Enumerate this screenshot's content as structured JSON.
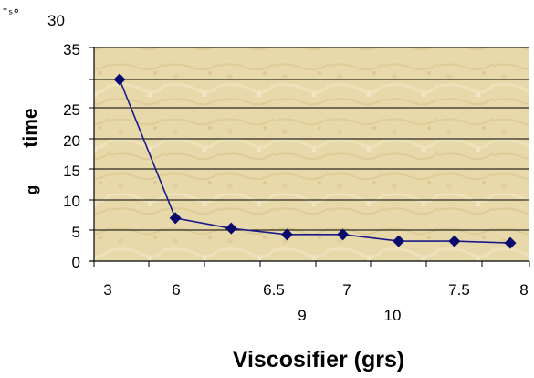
{
  "chart_data": {
    "type": "line",
    "xlabel": "Viscosifier (grs)",
    "ylabel": "time",
    "ylabel_fragment": "g",
    "corner_fragment": "¯ˢ°",
    "y_ticks": [
      "0",
      "5",
      "10",
      "15",
      "20",
      "25",
      "",
      "35",
      "30"
    ],
    "x_ticks_top": [
      "3",
      "6",
      "6.5",
      "7",
      "7.5",
      "8"
    ],
    "x_ticks_bottom": [
      "9",
      "10"
    ],
    "series": [
      {
        "values": [
          30,
          7.1,
          5.4,
          4.4,
          4.4,
          3.3,
          3.3,
          3.0
        ]
      }
    ],
    "ylim": [
      0,
      30
    ],
    "colors": {
      "line": "#1a1a8c",
      "marker": "#0a0a6e",
      "plot_bg": "#e8d9a8",
      "gridline": "#000000"
    }
  }
}
